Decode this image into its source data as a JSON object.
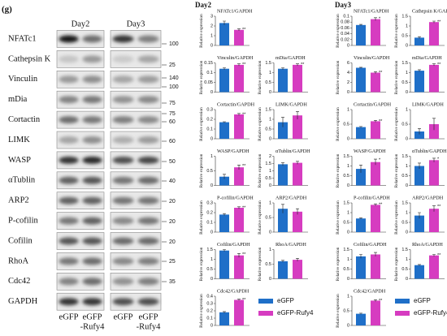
{
  "panel_label": "(g)",
  "days": [
    "Day2",
    "Day3"
  ],
  "blots": {
    "proteins": [
      "NFATc1",
      "Cathepsin K",
      "Vinculin",
      "mDia",
      "Cortactin",
      "LIMK",
      "WASP",
      "αTublin",
      "ARP2",
      "P-cofilin",
      "Cofilin",
      "RhoA",
      "Cdc42",
      "GAPDH"
    ],
    "markers": [
      100,
      25,
      140,
      100,
      75,
      75,
      60,
      60,
      50,
      40,
      20,
      20,
      20,
      25,
      35
    ],
    "lanes": [
      {
        "lines": [
          "eGFP"
        ]
      },
      {
        "lines": [
          "eGFP",
          "-Rufy4"
        ]
      }
    ]
  },
  "legend": [
    {
      "name": "eGFP",
      "color": "#1f6fc8"
    },
    {
      "name": "eGFP-Rufy4",
      "color": "#d63cc0"
    }
  ],
  "chart_data": [
    {
      "type": "bar",
      "title": "NFATc1/GAPDH",
      "ylabel": "Relative expression",
      "values": [
        2.3,
        1.6
      ],
      "errors": [
        0.2,
        0.1
      ],
      "ylim": [
        0,
        3
      ],
      "yticks": [
        0,
        1,
        2,
        3
      ],
      "marker": "**"
    },
    {
      "type": "bar",
      "title": "Vinculin/GAPDH",
      "ylabel": "Relative expression",
      "values": [
        0.12,
        0.14
      ],
      "errors": [
        0.005,
        0.005
      ],
      "ylim": [
        0,
        0.15
      ],
      "yticks": [
        0,
        0.05,
        0.1,
        0.15
      ],
      "marker": "**"
    },
    {
      "type": "bar",
      "title": "mDia/GAPDH",
      "ylabel": "Relative expression",
      "values": [
        1.2,
        1.4
      ],
      "errors": [
        0.05,
        0.05
      ],
      "ylim": [
        0,
        1.5
      ],
      "yticks": [
        0,
        0.5,
        1,
        1.5
      ],
      "marker": "**"
    },
    {
      "type": "bar",
      "title": "Cortactin/GAPDH",
      "ylabel": "Relative expression",
      "values": [
        0.17,
        0.25
      ],
      "errors": [
        0.005,
        0.01
      ],
      "ylim": [
        0,
        0.3
      ],
      "yticks": [
        0,
        0.1,
        0.2,
        0.3
      ],
      "marker": "**"
    },
    {
      "type": "bar",
      "title": "LIMK/GAPDH",
      "ylabel": "Relative expression",
      "values": [
        0.85,
        1.2
      ],
      "errors": [
        0.25,
        0.2
      ],
      "ylim": [
        0,
        1.5
      ],
      "yticks": [
        0,
        0.5,
        1,
        1.5
      ]
    },
    {
      "type": "bar",
      "title": "WASP/GAPDH",
      "ylabel": "Relative expression",
      "values": [
        0.3,
        0.62
      ],
      "errors": [
        0.08,
        0.08
      ],
      "ylim": [
        0,
        1
      ],
      "yticks": [
        0,
        0.5,
        1
      ],
      "marker": "**"
    },
    {
      "type": "bar",
      "title": "αTublin/GAPDH",
      "ylabel": "Relative expression",
      "values": [
        1.45,
        1.55
      ],
      "errors": [
        0.1,
        0.1
      ],
      "ylim": [
        0,
        2
      ],
      "yticks": [
        0,
        0.5,
        1,
        1.5,
        2
      ]
    },
    {
      "type": "bar",
      "title": "P-cofilin/GAPDH",
      "ylabel": "Relative expression",
      "values": [
        0.18,
        0.25
      ],
      "errors": [
        0.01,
        0.01
      ],
      "ylim": [
        0,
        0.3
      ],
      "yticks": [
        0,
        0.1,
        0.2,
        0.3
      ],
      "marker": "**"
    },
    {
      "type": "bar",
      "title": "ARP2/GAPDH",
      "ylabel": "Relative expression",
      "values": [
        0.8,
        0.7
      ],
      "errors": [
        0.15,
        0.1
      ],
      "ylim": [
        0,
        1
      ],
      "yticks": [
        0,
        0.5,
        1
      ]
    },
    {
      "type": "bar",
      "title": "Cofilin/GAPDH",
      "ylabel": "Relative expression",
      "values": [
        1.45,
        1.2
      ],
      "errors": [
        0.05,
        0.1
      ],
      "ylim": [
        0,
        1.5
      ],
      "yticks": [
        0,
        0.5,
        1,
        1.5
      ],
      "marker": "**"
    },
    {
      "type": "bar",
      "title": "RhoA/GAPDH",
      "ylabel": "Relative expression",
      "values": [
        0.6,
        0.65
      ],
      "errors": [
        0.03,
        0.05
      ],
      "ylim": [
        0,
        1
      ],
      "yticks": [
        0,
        0.5,
        1
      ]
    },
    {
      "type": "bar",
      "title": "Cdc42/GAPDH",
      "ylabel": "Relative expression",
      "values": [
        0.18,
        0.35
      ],
      "errors": [
        0.01,
        0.01
      ],
      "ylim": [
        0,
        0.4
      ],
      "yticks": [
        0,
        0.1,
        0.2,
        0.3,
        0.4
      ],
      "marker": "**"
    },
    {
      "type": "bar",
      "title": "NFATc1/GAPDH",
      "ylabel": "Relative expression",
      "values": [
        0.07,
        0.09
      ],
      "errors": [
        0.002,
        0.005
      ],
      "ylim": [
        0,
        0.1
      ],
      "yticks": [
        0,
        0.02,
        0.04,
        0.06,
        0.08,
        0.1
      ],
      "marker": "*"
    },
    {
      "type": "bar",
      "title": "Cathepsin K/GAPDH",
      "ylabel": "Relative expression",
      "values": [
        0.4,
        1.2
      ],
      "errors": [
        0.05,
        0.05
      ],
      "ylim": [
        0,
        1.5
      ],
      "yticks": [
        0,
        0.5,
        1,
        1.5
      ],
      "marker": "**"
    },
    {
      "type": "bar",
      "title": "Vinculin/GAPDH",
      "ylabel": "Relative expression",
      "values": [
        5,
        4
      ],
      "errors": [
        0.1,
        0.2
      ],
      "ylim": [
        0,
        6
      ],
      "yticks": [
        0,
        2,
        4,
        6
      ],
      "marker": "**"
    },
    {
      "type": "bar",
      "title": "mDia/GAPDH",
      "ylabel": "Relative expression",
      "values": [
        1.1,
        1.4
      ],
      "errors": [
        0.05,
        0.05
      ],
      "ylim": [
        0,
        1.5
      ],
      "yticks": [
        0,
        0.5,
        1,
        1.5
      ],
      "marker": "**"
    },
    {
      "type": "bar",
      "title": "Cortactin/GAPDH",
      "ylabel": "Relative expression",
      "values": [
        0.4,
        0.6
      ],
      "errors": [
        0.02,
        0.03
      ],
      "ylim": [
        0,
        1
      ],
      "yticks": [
        0,
        0.5,
        1
      ],
      "marker": "**"
    },
    {
      "type": "bar",
      "title": "LIMK/GAPDH",
      "ylabel": "Relative expression",
      "values": [
        0.25,
        0.5
      ],
      "errors": [
        0.1,
        0.2
      ],
      "ylim": [
        0,
        1
      ],
      "yticks": [
        0,
        0.5,
        1
      ]
    },
    {
      "type": "bar",
      "title": "WASP/GAPDH",
      "ylabel": "Relative expression",
      "values": [
        0.85,
        1.2
      ],
      "errors": [
        0.2,
        0.15
      ],
      "ylim": [
        0,
        1.5
      ],
      "yticks": [
        0,
        0.5,
        1,
        1.5
      ],
      "marker": "*"
    },
    {
      "type": "bar",
      "title": "αTublin/GAPDH",
      "ylabel": "Relative expression",
      "values": [
        1,
        1.3
      ],
      "errors": [
        0.15,
        0.1
      ],
      "ylim": [
        0,
        1.5
      ],
      "yticks": [
        0,
        0.5,
        1,
        1.5
      ],
      "marker": "*"
    },
    {
      "type": "bar",
      "title": "P-cofilin/GAPDH",
      "ylabel": "Relative expression",
      "values": [
        0.7,
        1.4
      ],
      "errors": [
        0.03,
        0.05
      ],
      "ylim": [
        0,
        1.5
      ],
      "yticks": [
        0,
        0.5,
        1,
        1.5
      ],
      "marker": "**"
    },
    {
      "type": "bar",
      "title": "ARP2/GAPDH",
      "ylabel": "Relative expression",
      "values": [
        0.85,
        1.2
      ],
      "errors": [
        0.15,
        0.15
      ],
      "ylim": [
        0,
        1.5
      ],
      "yticks": [
        0,
        0.5,
        1,
        1.5
      ],
      "marker": "**"
    },
    {
      "type": "bar",
      "title": "Cofilin/GAPDH",
      "ylabel": "Relative expression",
      "values": [
        1.15,
        1.25
      ],
      "errors": [
        0.1,
        0.1
      ],
      "ylim": [
        0,
        1.5
      ],
      "yticks": [
        0,
        0.5,
        1,
        1.5
      ]
    },
    {
      "type": "bar",
      "title": "RhoA/GAPDH",
      "ylabel": "Relative expression",
      "values": [
        0.7,
        1.2
      ],
      "errors": [
        0.03,
        0.05
      ],
      "ylim": [
        0,
        1.5
      ],
      "yticks": [
        0,
        0.5,
        1,
        1.5
      ],
      "marker": "**"
    },
    {
      "type": "bar",
      "title": "Cdc42/GAPDH",
      "ylabel": "Relative expression",
      "values": [
        0.4,
        0.85
      ],
      "errors": [
        0.02,
        0.03
      ],
      "ylim": [
        0,
        1
      ],
      "yticks": [
        0,
        0.5,
        1
      ],
      "marker": "**"
    }
  ]
}
